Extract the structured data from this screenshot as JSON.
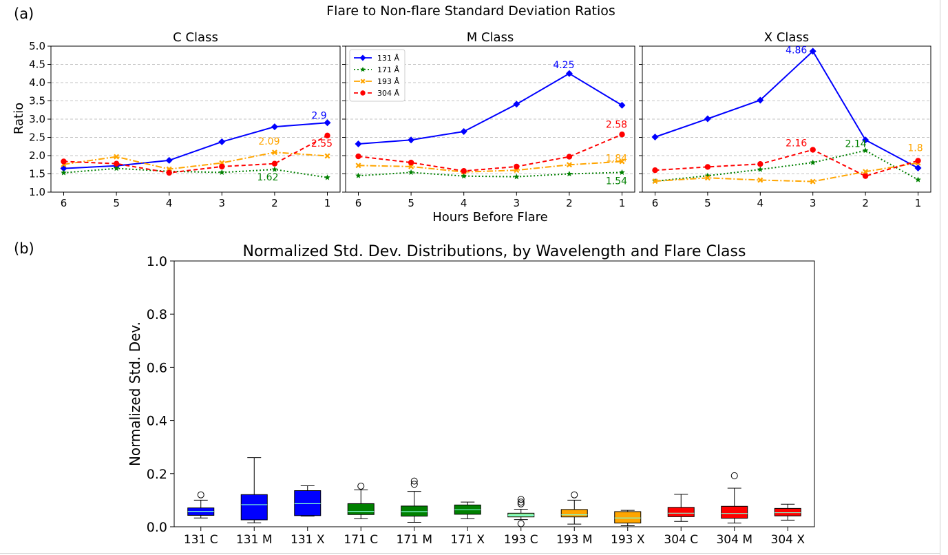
{
  "panel_a": {
    "panel_label": "(a)",
    "suptitle": "Flare to Non-flare Standard Deviation Ratios",
    "ylabel": "Ratio",
    "xlabel": "Hours Before Flare",
    "yticks": [
      "1.0",
      "1.5",
      "2.0",
      "2.5",
      "3.0",
      "3.5",
      "4.0",
      "4.5",
      "5.0"
    ]
  },
  "panel_b": {
    "panel_label": "(b)"
  },
  "colors": {
    "131": "#0000ff",
    "171": "#008000",
    "193": "#ffa500",
    "304": "#ff0000",
    "median": "#7fffd4",
    "grid": "#b0b0b0"
  },
  "chart_data": [
    {
      "type": "line",
      "title": "C Class",
      "x": [
        6,
        5,
        4,
        3,
        2,
        1
      ],
      "xticks": [
        "6",
        "5",
        "4",
        "3",
        "2",
        "1"
      ],
      "ylim": [
        1.0,
        5.0
      ],
      "grid": "y",
      "series": [
        {
          "name": "131 Å",
          "values": [
            1.65,
            1.72,
            1.87,
            2.38,
            2.79,
            2.9
          ]
        },
        {
          "name": "171 Å",
          "values": [
            1.53,
            1.65,
            1.57,
            1.54,
            1.62,
            1.4
          ]
        },
        {
          "name": "193 Å",
          "values": [
            1.76,
            1.97,
            1.63,
            1.8,
            2.09,
            1.99
          ]
        },
        {
          "name": "304 Å",
          "values": [
            1.84,
            1.78,
            1.53,
            1.7,
            1.78,
            2.55
          ]
        }
      ],
      "annotations": [
        {
          "series": 0,
          "x": 1,
          "text": "2.9"
        },
        {
          "series": 3,
          "x": 1,
          "text": "2.55"
        },
        {
          "series": 2,
          "x": 2,
          "text": "2.09"
        },
        {
          "series": 1,
          "x": 2,
          "text": "1.62"
        }
      ]
    },
    {
      "type": "line",
      "title": "M Class",
      "x": [
        6,
        5,
        4,
        3,
        2,
        1
      ],
      "xticks": [
        "6",
        "5",
        "4",
        "3",
        "2",
        "1"
      ],
      "ylim": [
        1.0,
        5.0
      ],
      "grid": "y",
      "legend": "top-left",
      "series": [
        {
          "name": "131 Å",
          "values": [
            2.32,
            2.43,
            2.66,
            3.41,
            4.25,
            3.38
          ]
        },
        {
          "name": "171 Å",
          "values": [
            1.45,
            1.54,
            1.44,
            1.42,
            1.5,
            1.54
          ]
        },
        {
          "name": "193 Å",
          "values": [
            1.73,
            1.7,
            1.55,
            1.6,
            1.75,
            1.84
          ]
        },
        {
          "name": "304 Å",
          "values": [
            1.98,
            1.81,
            1.58,
            1.7,
            1.97,
            2.58
          ]
        }
      ],
      "annotations": [
        {
          "series": 0,
          "x": 2,
          "text": "4.25"
        },
        {
          "series": 3,
          "x": 1,
          "text": "2.58"
        },
        {
          "series": 2,
          "x": 1,
          "text": "1.84"
        },
        {
          "series": 1,
          "x": 1,
          "text": "1.54"
        }
      ]
    },
    {
      "type": "line",
      "title": "X Class",
      "x": [
        6,
        5,
        4,
        3,
        2,
        1
      ],
      "xticks": [
        "6",
        "5",
        "4",
        "3",
        "2",
        "1"
      ],
      "ylim": [
        1.0,
        5.0
      ],
      "grid": "y",
      "series": [
        {
          "name": "131 Å",
          "values": [
            2.51,
            3.01,
            3.52,
            4.86,
            2.43,
            1.66
          ]
        },
        {
          "name": "171 Å",
          "values": [
            1.3,
            1.45,
            1.62,
            1.81,
            2.14,
            1.34
          ]
        },
        {
          "name": "193 Å",
          "values": [
            1.3,
            1.39,
            1.33,
            1.29,
            1.56,
            1.8
          ]
        },
        {
          "name": "304 Å",
          "values": [
            1.6,
            1.69,
            1.77,
            2.16,
            1.44,
            1.86
          ]
        }
      ],
      "annotations": [
        {
          "series": 0,
          "x": 3,
          "text": "4.86"
        },
        {
          "series": 3,
          "x": 3,
          "text": "2.16"
        },
        {
          "series": 1,
          "x": 2,
          "text": "2.14"
        },
        {
          "series": 2,
          "x": 1,
          "text": "1.8"
        }
      ]
    },
    {
      "type": "box",
      "title": "Normalized Std. Dev. Distributions, by Wavelength and Flare Class",
      "ylabel": "Normalized Std. Dev.",
      "ylim": [
        0.0,
        1.0
      ],
      "yticks": [
        "0.0",
        "0.2",
        "0.4",
        "0.6",
        "0.8",
        "1.0"
      ],
      "categories": [
        "131 C",
        "131 M",
        "131 X",
        "171 C",
        "171 M",
        "171 X",
        "193 C",
        "193 M",
        "193 X",
        "304 C",
        "304 M",
        "304 X"
      ],
      "boxes": [
        {
          "fill": "#0000ff",
          "whislo": 0.033,
          "q1": 0.043,
          "med": 0.058,
          "q3": 0.071,
          "whishi": 0.1,
          "fliers": [
            0.12
          ]
        },
        {
          "fill": "#0000ff",
          "whislo": 0.015,
          "q1": 0.026,
          "med": 0.083,
          "q3": 0.121,
          "whishi": 0.26,
          "fliers": []
        },
        {
          "fill": "#0000ff",
          "whislo": 0.04,
          "q1": 0.042,
          "med": 0.087,
          "q3": 0.136,
          "whishi": 0.154,
          "fliers": []
        },
        {
          "fill": "#008000",
          "whislo": 0.03,
          "q1": 0.046,
          "med": 0.058,
          "q3": 0.087,
          "whishi": 0.139,
          "fliers": [
            0.153
          ]
        },
        {
          "fill": "#008000",
          "whislo": 0.017,
          "q1": 0.04,
          "med": 0.057,
          "q3": 0.078,
          "whishi": 0.133,
          "fliers": [
            0.16,
            0.172
          ]
        },
        {
          "fill": "#008000",
          "whislo": 0.03,
          "q1": 0.047,
          "med": 0.064,
          "q3": 0.082,
          "whishi": 0.093,
          "fliers": []
        },
        {
          "fill": "#90ee90",
          "whislo": 0.027,
          "q1": 0.037,
          "med": 0.043,
          "q3": 0.051,
          "whishi": 0.066,
          "fliers": [
            0.012,
            0.086,
            0.093,
            0.103
          ]
        },
        {
          "fill": "#ffa500",
          "whislo": 0.01,
          "q1": 0.037,
          "med": 0.045,
          "q3": 0.065,
          "whishi": 0.1,
          "fliers": [
            0.12
          ]
        },
        {
          "fill": "#ffa500",
          "whislo": 0.004,
          "q1": 0.014,
          "med": 0.033,
          "q3": 0.057,
          "whishi": 0.062,
          "fliers": []
        },
        {
          "fill": "#ff0000",
          "whislo": 0.02,
          "q1": 0.038,
          "med": 0.051,
          "q3": 0.073,
          "whishi": 0.122,
          "fliers": []
        },
        {
          "fill": "#ff0000",
          "whislo": 0.014,
          "q1": 0.032,
          "med": 0.05,
          "q3": 0.077,
          "whishi": 0.145,
          "fliers": [
            0.192
          ]
        },
        {
          "fill": "#ff0000",
          "whislo": 0.025,
          "q1": 0.041,
          "med": 0.053,
          "q3": 0.069,
          "whishi": 0.085,
          "fliers": []
        }
      ]
    }
  ]
}
